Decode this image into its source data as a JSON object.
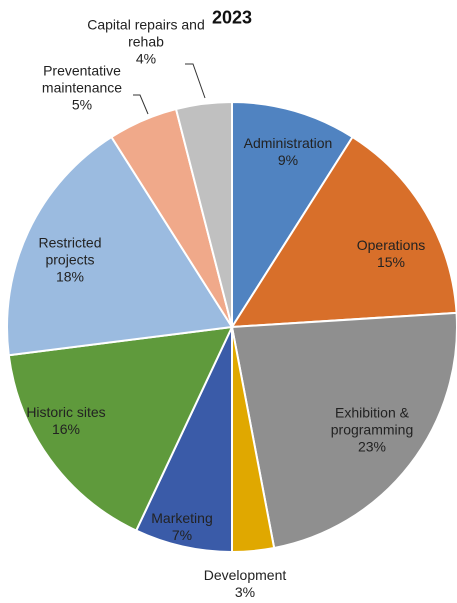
{
  "chart_data": {
    "type": "pie",
    "title": "2023",
    "categories": [
      "Administration",
      "Operations",
      "Exhibition & programming",
      "Development",
      "Marketing",
      "Historic sites",
      "Restricted projects",
      "Preventative maintenance",
      "Capital repairs and rehab"
    ],
    "values": [
      9,
      15,
      23,
      3,
      7,
      16,
      18,
      5,
      4
    ],
    "value_labels": [
      "9%",
      "15%",
      "23%",
      "3%",
      "7%",
      "16%",
      "18%",
      "5%",
      "4%"
    ],
    "colors": [
      "#5083c1",
      "#d86f2a",
      "#8f8f8f",
      "#e0a800",
      "#3a5ba8",
      "#5f9a3c",
      "#9bbbe0",
      "#f0a98a",
      "#c0c0c0"
    ]
  }
}
